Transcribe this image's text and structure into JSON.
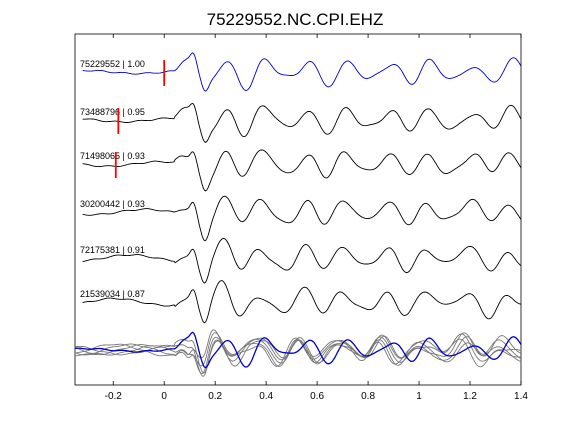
{
  "chart_data": {
    "type": "line",
    "title": "75229552.NC.CPI.EHZ",
    "xlabel": "",
    "ylabel": "",
    "xlim": [
      -0.35,
      1.4
    ],
    "x_ticks": [
      -0.2,
      0,
      0.2,
      0.4,
      0.6,
      0.8,
      1,
      1.2,
      1.4
    ],
    "x_tick_labels": [
      "-0.2",
      "0",
      "0.2",
      "0.4",
      "0.6",
      "0.8",
      "1",
      "1.2",
      "1.4"
    ],
    "grid": false,
    "legend": "none",
    "colors": {
      "template": "#0000cc",
      "trace": "#000000",
      "overlay": "#777777",
      "pick": "#ff0000"
    },
    "series": [
      {
        "label": "75229552 | 1.00",
        "color": "#0000cc",
        "pick_x": 0.0
      },
      {
        "label": "73488796 | 0.95",
        "color": "#000000",
        "pick_x": -0.18
      },
      {
        "label": "71498065 | 0.93",
        "color": "#000000",
        "pick_x": -0.19
      },
      {
        "label": "30200442 | 0.93",
        "color": "#000000"
      },
      {
        "label": "72175381 | 0.91",
        "color": "#000000"
      },
      {
        "label": "21539034 | 0.87",
        "color": "#000000"
      }
    ],
    "stack_panel": "overlay of all aligned traces"
  }
}
